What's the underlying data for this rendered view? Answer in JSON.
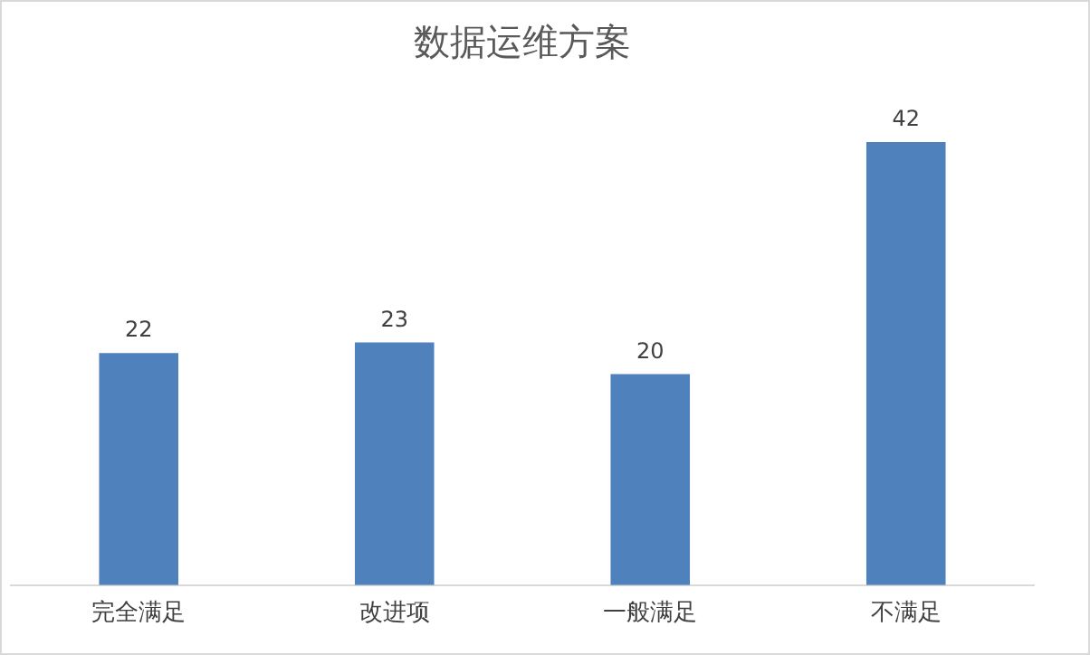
{
  "chart_data": {
    "type": "bar",
    "title": "数据运维方案",
    "categories": [
      "完全满足",
      "改进项",
      "一般满足",
      "不满足"
    ],
    "values": [
      22,
      23,
      20,
      42
    ],
    "color": "#4f81bd",
    "data_labels": true,
    "grid": false,
    "legend": false
  }
}
